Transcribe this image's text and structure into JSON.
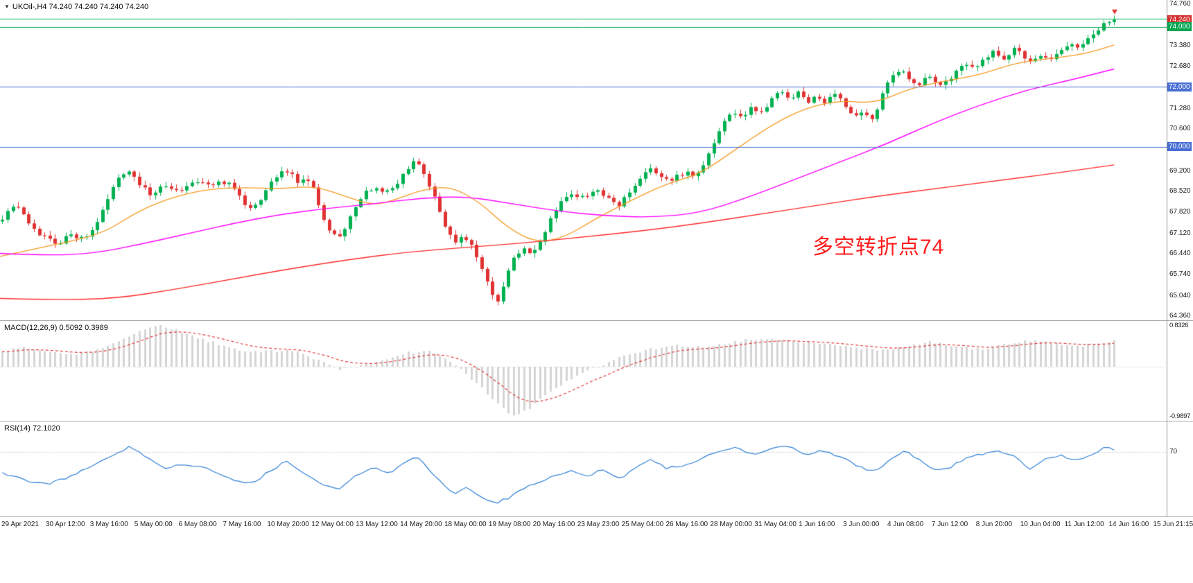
{
  "header": {
    "dropdown_icon": "▼",
    "symbol_info": "UKOil-,H4  74.240 74.240 74.240 74.240"
  },
  "annotation": {
    "text": "多空转折点74",
    "color": "#ff1c1c"
  },
  "price_axis": {
    "ticks": [
      "74.760",
      "73.380",
      "72.680",
      "71.280",
      "70.600",
      "69.200",
      "68.520",
      "67.820",
      "67.120",
      "66.440",
      "65.740",
      "65.040",
      "64.360"
    ]
  },
  "price_tags": [
    {
      "label": "74.240",
      "price": 74.24,
      "bg": "#d23030",
      "kind": "current-bid"
    },
    {
      "label": "74.000",
      "price": 74.0,
      "bg": "#00a650",
      "kind": "level"
    },
    {
      "label": "72.000",
      "price": 72.0,
      "bg": "#4a6fd4",
      "kind": "level"
    },
    {
      "label": "70.000",
      "price": 70.0,
      "bg": "#4a6fd4",
      "kind": "level"
    }
  ],
  "time_axis": [
    "29 Apr 2021",
    "30 Apr 12:00",
    "3 May 16:00",
    "5 May 00:00",
    "6 May 08:00",
    "7 May 16:00",
    "10 May 20:00",
    "12 May 04:00",
    "13 May 12:00",
    "14 May 20:00",
    "18 May 00:00",
    "19 May 08:00",
    "20 May 16:00",
    "23 May 23:00",
    "25 May 04:00",
    "26 May 16:00",
    "28 May 00:00",
    "31 May 04:00",
    "1 Jun 16:00",
    "3 Jun 00:00",
    "4 Jun 08:00",
    "7 Jun 12:00",
    "8 Jun 20:00",
    "10 Jun 04:00",
    "11 Jun 12:00",
    "14 Jun 16:00",
    "15 Jun 21:15"
  ],
  "macd_panel": {
    "label": "MACD(12,26,9) 0.5092 0.3989",
    "top_label": "0.8326",
    "bottom_label": "-0.9897"
  },
  "rsi_panel": {
    "label": "RSI(14) 72.1020",
    "level_label": "70"
  },
  "colors": {
    "bull": "#00b050",
    "bear": "#e03232",
    "macd_hist": "#d4d4d4",
    "macd_signal": "#e23b3b",
    "rsi_line": "#2e7fd6"
  },
  "chart_data": {
    "type": "candlestick",
    "symbol": "UKOil-",
    "timeframe": "H4",
    "title": "UKOil- H4 crude oil chart with MA overlays, MACD and RSI",
    "current_price": 74.24,
    "last_ohlc": {
      "open": 74.24,
      "high": 74.24,
      "low": 74.24,
      "close": 74.24
    },
    "bars": 212,
    "price_range": [
      64.36,
      74.76
    ],
    "close_path": [
      [
        0.0,
        67.55
      ],
      [
        0.008,
        67.95
      ],
      [
        0.016,
        68.05
      ],
      [
        0.024,
        67.5
      ],
      [
        0.034,
        67.1
      ],
      [
        0.044,
        66.9
      ],
      [
        0.052,
        66.75
      ],
      [
        0.06,
        67.15
      ],
      [
        0.068,
        66.9
      ],
      [
        0.076,
        67.1
      ],
      [
        0.084,
        67.6
      ],
      [
        0.092,
        68.3
      ],
      [
        0.1,
        68.9
      ],
      [
        0.108,
        69.25
      ],
      [
        0.113,
        69.1
      ],
      [
        0.12,
        68.75
      ],
      [
        0.128,
        68.4
      ],
      [
        0.136,
        68.6
      ],
      [
        0.144,
        68.75
      ],
      [
        0.152,
        68.5
      ],
      [
        0.16,
        68.75
      ],
      [
        0.17,
        68.9
      ],
      [
        0.18,
        68.65
      ],
      [
        0.19,
        68.85
      ],
      [
        0.198,
        68.7
      ],
      [
        0.206,
        68.3
      ],
      [
        0.214,
        67.95
      ],
      [
        0.222,
        68.15
      ],
      [
        0.23,
        68.7
      ],
      [
        0.24,
        69.1
      ],
      [
        0.248,
        69.25
      ],
      [
        0.255,
        68.8
      ],
      [
        0.262,
        69.0
      ],
      [
        0.27,
        68.5
      ],
      [
        0.278,
        67.5
      ],
      [
        0.288,
        66.95
      ],
      [
        0.296,
        67.3
      ],
      [
        0.306,
        68.1
      ],
      [
        0.314,
        68.5
      ],
      [
        0.322,
        68.6
      ],
      [
        0.33,
        68.45
      ],
      [
        0.338,
        68.7
      ],
      [
        0.346,
        69.1
      ],
      [
        0.354,
        69.55
      ],
      [
        0.36,
        69.35
      ],
      [
        0.366,
        68.9
      ],
      [
        0.374,
        68.2
      ],
      [
        0.382,
        67.3
      ],
      [
        0.39,
        66.85
      ],
      [
        0.398,
        67.05
      ],
      [
        0.404,
        66.7
      ],
      [
        0.412,
        66.0
      ],
      [
        0.42,
        65.2
      ],
      [
        0.427,
        64.8
      ],
      [
        0.433,
        65.5
      ],
      [
        0.44,
        66.35
      ],
      [
        0.448,
        66.6
      ],
      [
        0.456,
        66.35
      ],
      [
        0.464,
        66.9
      ],
      [
        0.472,
        67.7
      ],
      [
        0.48,
        68.15
      ],
      [
        0.49,
        68.45
      ],
      [
        0.5,
        68.3
      ],
      [
        0.51,
        68.6
      ],
      [
        0.52,
        68.35
      ],
      [
        0.53,
        68.05
      ],
      [
        0.54,
        68.5
      ],
      [
        0.55,
        69.05
      ],
      [
        0.558,
        69.35
      ],
      [
        0.566,
        69.0
      ],
      [
        0.576,
        68.9
      ],
      [
        0.586,
        69.15
      ],
      [
        0.596,
        69.05
      ],
      [
        0.604,
        69.5
      ],
      [
        0.612,
        70.15
      ],
      [
        0.62,
        70.85
      ],
      [
        0.628,
        71.2
      ],
      [
        0.636,
        70.9
      ],
      [
        0.644,
        71.3
      ],
      [
        0.652,
        71.1
      ],
      [
        0.66,
        71.55
      ],
      [
        0.668,
        71.9
      ],
      [
        0.676,
        71.6
      ],
      [
        0.684,
        71.85
      ],
      [
        0.692,
        71.5
      ],
      [
        0.7,
        71.75
      ],
      [
        0.708,
        71.45
      ],
      [
        0.716,
        71.85
      ],
      [
        0.724,
        71.35
      ],
      [
        0.732,
        70.95
      ],
      [
        0.74,
        71.2
      ],
      [
        0.748,
        70.9
      ],
      [
        0.756,
        71.7
      ],
      [
        0.764,
        72.35
      ],
      [
        0.772,
        72.65
      ],
      [
        0.78,
        72.25
      ],
      [
        0.788,
        72.1
      ],
      [
        0.796,
        72.4
      ],
      [
        0.804,
        71.95
      ],
      [
        0.812,
        72.2
      ],
      [
        0.82,
        72.55
      ],
      [
        0.828,
        72.75
      ],
      [
        0.836,
        72.55
      ],
      [
        0.844,
        73.0
      ],
      [
        0.852,
        73.15
      ],
      [
        0.86,
        72.9
      ],
      [
        0.868,
        73.3
      ],
      [
        0.876,
        73.05
      ],
      [
        0.884,
        72.8
      ],
      [
        0.892,
        73.0
      ],
      [
        0.9,
        72.9
      ],
      [
        0.908,
        73.2
      ],
      [
        0.916,
        73.45
      ],
      [
        0.924,
        73.3
      ],
      [
        0.932,
        73.6
      ],
      [
        0.94,
        73.9
      ],
      [
        0.948,
        74.15
      ],
      [
        0.955,
        74.24
      ]
    ],
    "overlays": {
      "ma_fast": {
        "name": "MA-fast-orange",
        "color": "#f59a23",
        "points": [
          [
            0.0,
            66.35
          ],
          [
            0.03,
            66.6
          ],
          [
            0.06,
            66.85
          ],
          [
            0.09,
            67.15
          ],
          [
            0.12,
            67.9
          ],
          [
            0.15,
            68.35
          ],
          [
            0.18,
            68.6
          ],
          [
            0.21,
            68.65
          ],
          [
            0.24,
            68.6
          ],
          [
            0.27,
            68.7
          ],
          [
            0.3,
            68.3
          ],
          [
            0.32,
            68.05
          ],
          [
            0.34,
            68.25
          ],
          [
            0.36,
            68.55
          ],
          [
            0.385,
            68.7
          ],
          [
            0.41,
            68.2
          ],
          [
            0.435,
            67.3
          ],
          [
            0.46,
            66.8
          ],
          [
            0.485,
            67.0
          ],
          [
            0.51,
            67.6
          ],
          [
            0.54,
            68.2
          ],
          [
            0.57,
            68.75
          ],
          [
            0.6,
            69.1
          ],
          [
            0.63,
            69.9
          ],
          [
            0.66,
            70.7
          ],
          [
            0.69,
            71.3
          ],
          [
            0.72,
            71.55
          ],
          [
            0.75,
            71.45
          ],
          [
            0.78,
            71.95
          ],
          [
            0.81,
            72.2
          ],
          [
            0.84,
            72.4
          ],
          [
            0.87,
            72.8
          ],
          [
            0.9,
            72.95
          ],
          [
            0.93,
            73.1
          ],
          [
            0.955,
            73.4
          ]
        ]
      },
      "ma_mid": {
        "name": "MA-mid-magenta",
        "color": "#ff00ff",
        "points": [
          [
            0.0,
            66.45
          ],
          [
            0.04,
            66.38
          ],
          [
            0.08,
            66.45
          ],
          [
            0.12,
            66.75
          ],
          [
            0.16,
            67.1
          ],
          [
            0.2,
            67.45
          ],
          [
            0.24,
            67.75
          ],
          [
            0.28,
            67.95
          ],
          [
            0.32,
            68.1
          ],
          [
            0.36,
            68.3
          ],
          [
            0.4,
            68.35
          ],
          [
            0.44,
            68.1
          ],
          [
            0.48,
            67.85
          ],
          [
            0.52,
            67.7
          ],
          [
            0.56,
            67.65
          ],
          [
            0.6,
            67.8
          ],
          [
            0.64,
            68.3
          ],
          [
            0.68,
            68.9
          ],
          [
            0.72,
            69.5
          ],
          [
            0.76,
            70.1
          ],
          [
            0.8,
            70.8
          ],
          [
            0.84,
            71.4
          ],
          [
            0.88,
            71.9
          ],
          [
            0.92,
            72.25
          ],
          [
            0.955,
            72.6
          ]
        ]
      },
      "ma_slow": {
        "name": "MA-slow-red",
        "color": "#ff2a2a",
        "points": [
          [
            0.0,
            64.95
          ],
          [
            0.05,
            64.9
          ],
          [
            0.1,
            64.95
          ],
          [
            0.15,
            65.25
          ],
          [
            0.2,
            65.6
          ],
          [
            0.25,
            65.95
          ],
          [
            0.3,
            66.25
          ],
          [
            0.35,
            66.5
          ],
          [
            0.4,
            66.65
          ],
          [
            0.45,
            66.8
          ],
          [
            0.5,
            67.0
          ],
          [
            0.55,
            67.2
          ],
          [
            0.6,
            67.45
          ],
          [
            0.65,
            67.75
          ],
          [
            0.7,
            68.05
          ],
          [
            0.75,
            68.35
          ],
          [
            0.8,
            68.6
          ],
          [
            0.85,
            68.85
          ],
          [
            0.9,
            69.1
          ],
          [
            0.955,
            69.4
          ]
        ]
      }
    },
    "hlines": [
      {
        "name": "ask-line",
        "price": 74.27,
        "color": "#00b050",
        "style": "solid"
      },
      {
        "name": "level-74000",
        "price": 74.0,
        "color": "#00a650",
        "style": "solid"
      },
      {
        "name": "level-72000",
        "price": 72.0,
        "color": "#4a6fd4",
        "style": "solid"
      },
      {
        "name": "level-70000",
        "price": 70.0,
        "color": "#4a6fd4",
        "style": "solid"
      }
    ],
    "macd": {
      "range": [
        -0.9897,
        0.8326
      ],
      "current_macd": 0.5092,
      "current_signal": 0.3989,
      "path": [
        [
          0.0,
          0.28
        ],
        [
          0.02,
          0.38
        ],
        [
          0.04,
          0.3
        ],
        [
          0.06,
          0.22
        ],
        [
          0.08,
          0.3
        ],
        [
          0.1,
          0.5
        ],
        [
          0.12,
          0.7
        ],
        [
          0.135,
          0.8
        ],
        [
          0.15,
          0.72
        ],
        [
          0.17,
          0.55
        ],
        [
          0.19,
          0.42
        ],
        [
          0.21,
          0.28
        ],
        [
          0.23,
          0.3
        ],
        [
          0.25,
          0.32
        ],
        [
          0.27,
          0.15
        ],
        [
          0.29,
          -0.05
        ],
        [
          0.31,
          0.02
        ],
        [
          0.33,
          0.12
        ],
        [
          0.35,
          0.28
        ],
        [
          0.37,
          0.3
        ],
        [
          0.39,
          0.05
        ],
        [
          0.41,
          -0.35
        ],
        [
          0.425,
          -0.7
        ],
        [
          0.44,
          -0.95
        ],
        [
          0.45,
          -0.85
        ],
        [
          0.465,
          -0.6
        ],
        [
          0.48,
          -0.35
        ],
        [
          0.5,
          -0.12
        ],
        [
          0.52,
          0.08
        ],
        [
          0.54,
          0.25
        ],
        [
          0.56,
          0.35
        ],
        [
          0.58,
          0.42
        ],
        [
          0.6,
          0.38
        ],
        [
          0.62,
          0.45
        ],
        [
          0.64,
          0.52
        ],
        [
          0.66,
          0.55
        ],
        [
          0.68,
          0.5
        ],
        [
          0.7,
          0.45
        ],
        [
          0.72,
          0.42
        ],
        [
          0.74,
          0.35
        ],
        [
          0.76,
          0.32
        ],
        [
          0.78,
          0.42
        ],
        [
          0.8,
          0.48
        ],
        [
          0.82,
          0.4
        ],
        [
          0.84,
          0.34
        ],
        [
          0.86,
          0.42
        ],
        [
          0.88,
          0.5
        ],
        [
          0.9,
          0.46
        ],
        [
          0.92,
          0.4
        ],
        [
          0.94,
          0.44
        ],
        [
          0.955,
          0.51
        ]
      ]
    },
    "rsi": {
      "range": [
        25,
        90
      ],
      "level": 70,
      "current": 72.102,
      "path": [
        [
          0.0,
          55
        ],
        [
          0.02,
          50
        ],
        [
          0.04,
          46
        ],
        [
          0.06,
          52
        ],
        [
          0.08,
          60
        ],
        [
          0.1,
          68
        ],
        [
          0.11,
          74
        ],
        [
          0.125,
          66
        ],
        [
          0.14,
          58
        ],
        [
          0.16,
          61
        ],
        [
          0.18,
          57
        ],
        [
          0.2,
          50
        ],
        [
          0.215,
          47
        ],
        [
          0.23,
          55
        ],
        [
          0.245,
          63
        ],
        [
          0.26,
          55
        ],
        [
          0.275,
          47
        ],
        [
          0.29,
          42
        ],
        [
          0.305,
          53
        ],
        [
          0.32,
          58
        ],
        [
          0.335,
          55
        ],
        [
          0.35,
          64
        ],
        [
          0.358,
          67
        ],
        [
          0.368,
          56
        ],
        [
          0.38,
          46
        ],
        [
          0.39,
          40
        ],
        [
          0.4,
          44
        ],
        [
          0.412,
          37
        ],
        [
          0.425,
          33
        ],
        [
          0.435,
          36
        ],
        [
          0.447,
          43
        ],
        [
          0.46,
          47
        ],
        [
          0.475,
          52
        ],
        [
          0.49,
          56
        ],
        [
          0.503,
          52
        ],
        [
          0.515,
          57
        ],
        [
          0.53,
          50
        ],
        [
          0.545,
          58
        ],
        [
          0.558,
          64
        ],
        [
          0.572,
          58
        ],
        [
          0.585,
          60
        ],
        [
          0.6,
          64
        ],
        [
          0.615,
          70
        ],
        [
          0.63,
          73
        ],
        [
          0.645,
          68
        ],
        [
          0.66,
          72
        ],
        [
          0.675,
          74
        ],
        [
          0.69,
          68
        ],
        [
          0.705,
          71
        ],
        [
          0.72,
          66
        ],
        [
          0.735,
          60
        ],
        [
          0.75,
          55
        ],
        [
          0.763,
          65
        ],
        [
          0.775,
          71
        ],
        [
          0.79,
          63
        ],
        [
          0.803,
          56
        ],
        [
          0.815,
          59
        ],
        [
          0.828,
          65
        ],
        [
          0.84,
          68
        ],
        [
          0.855,
          70
        ],
        [
          0.87,
          66
        ],
        [
          0.883,
          57
        ],
        [
          0.895,
          64
        ],
        [
          0.91,
          67
        ],
        [
          0.925,
          64
        ],
        [
          0.94,
          70
        ],
        [
          0.95,
          74
        ],
        [
          0.955,
          72.1
        ]
      ]
    }
  }
}
